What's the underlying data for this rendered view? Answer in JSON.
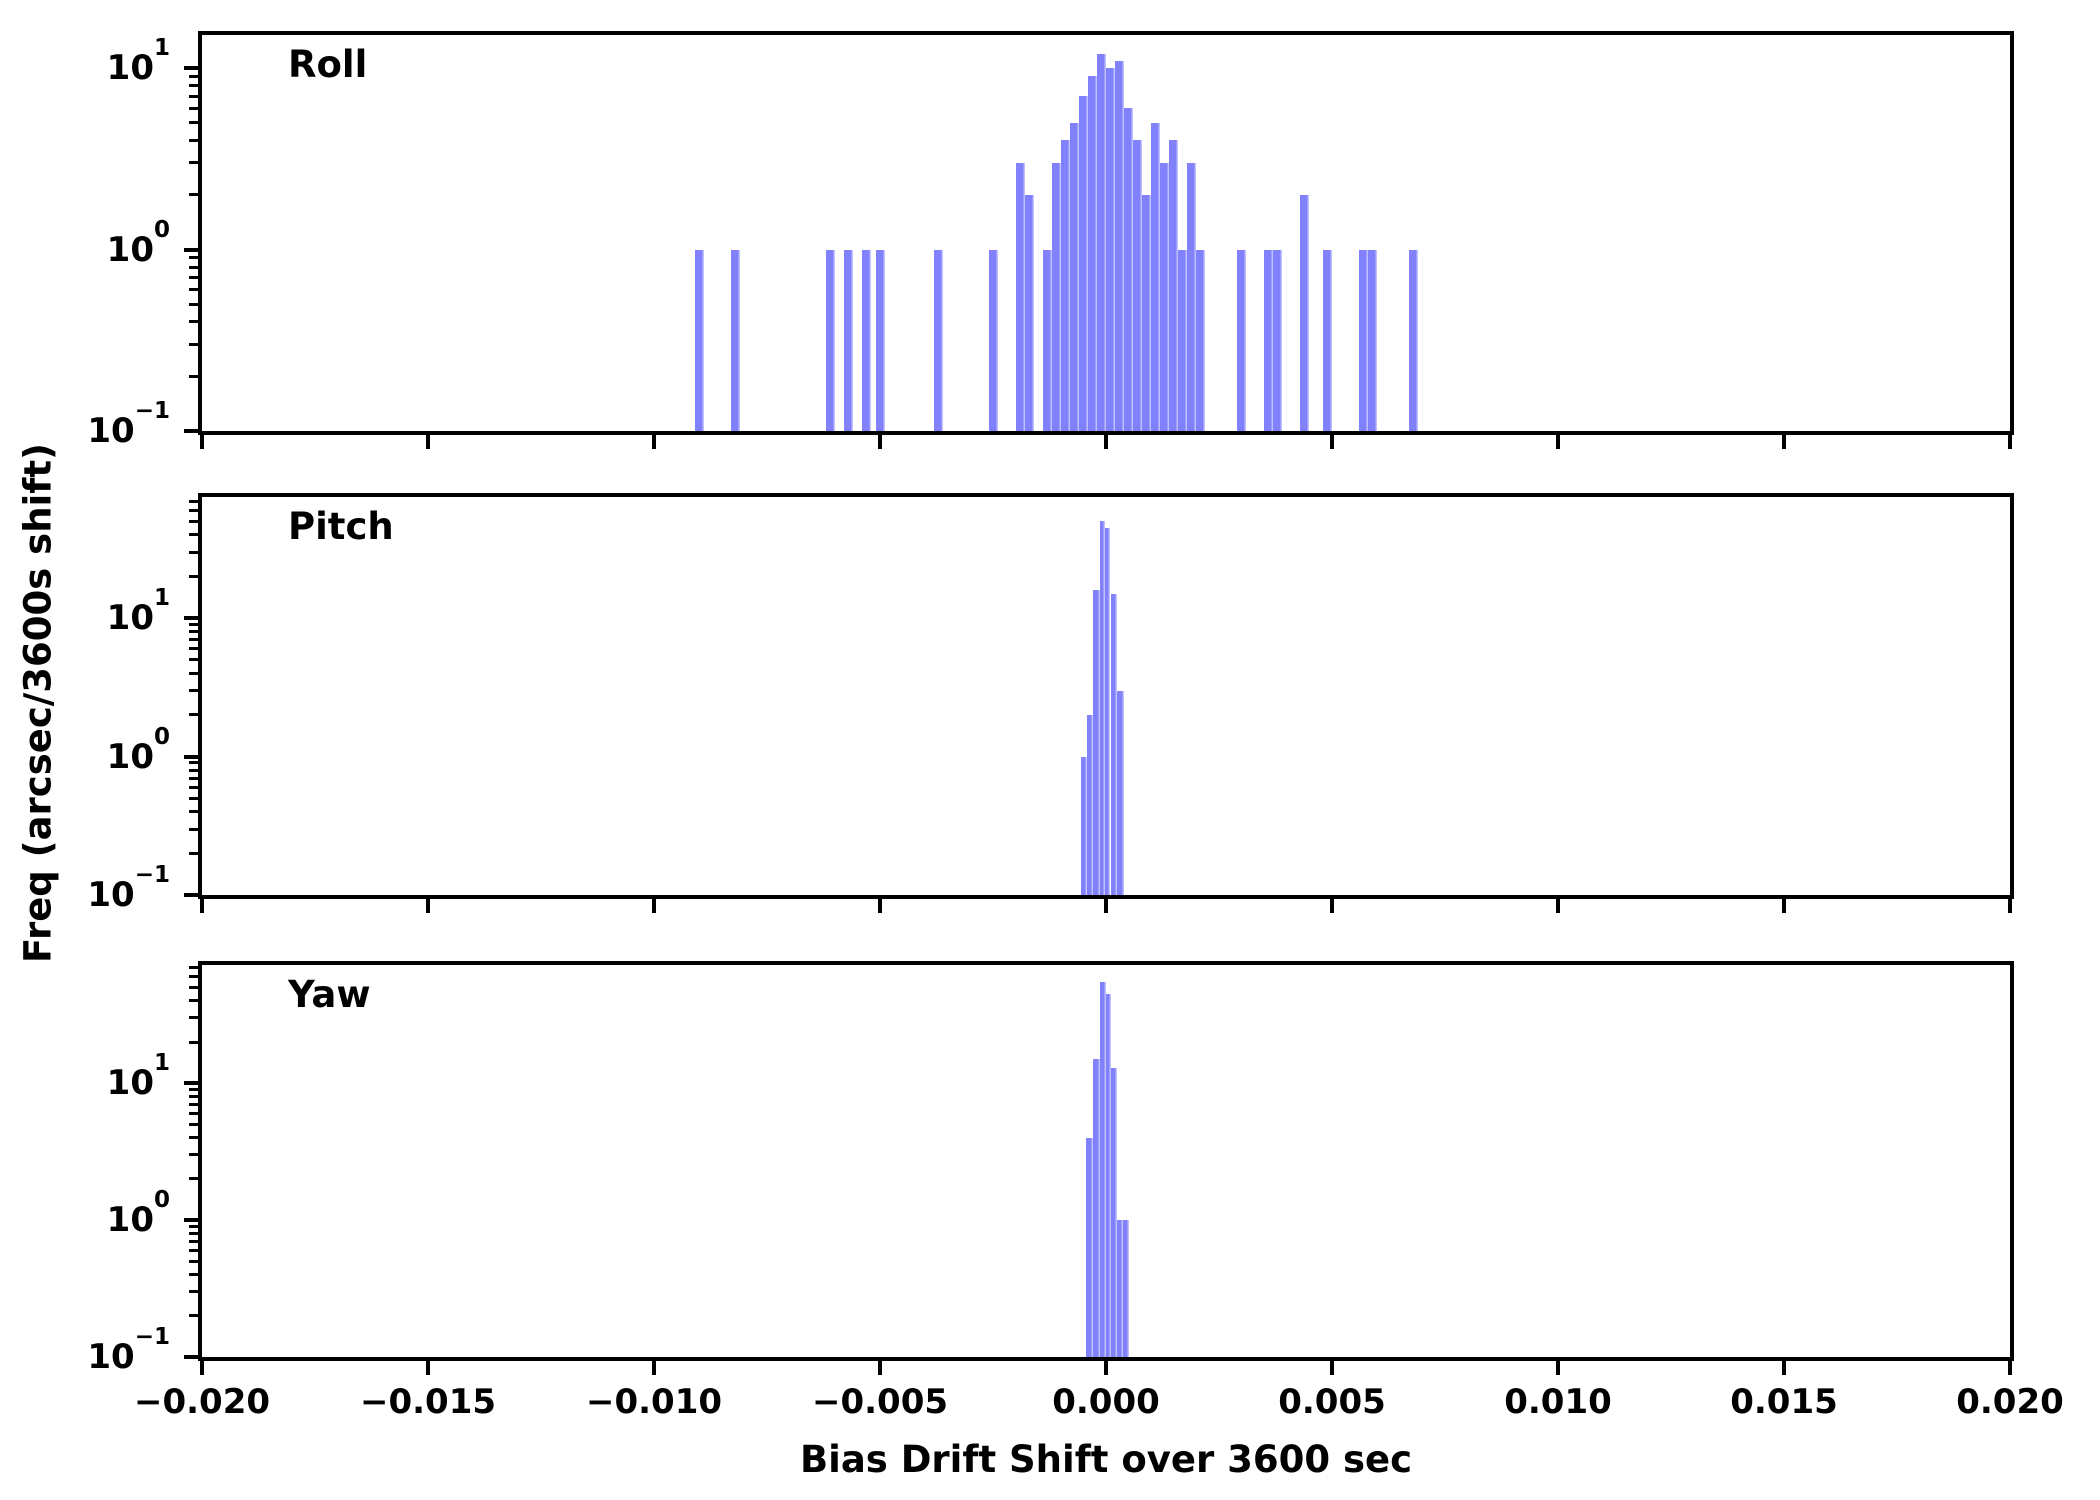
{
  "figure": {
    "xlabel": "Bias Drift Shift over 3600 sec",
    "ylabel": "Freq (arcsec/3600s shift)",
    "bar_color": "#8181fb",
    "axis_color": "#000000",
    "background_color": "#ffffff"
  },
  "x_axis": {
    "min": -0.02,
    "max": 0.02,
    "tick_values": [
      -0.02,
      -0.015,
      -0.01,
      -0.005,
      0.0,
      0.005,
      0.01,
      0.015,
      0.02
    ],
    "tick_labels": [
      "−0.020",
      "−0.015",
      "−0.010",
      "−0.005",
      "0.000",
      "0.005",
      "0.010",
      "0.015",
      "0.020"
    ]
  },
  "chart_data": [
    {
      "type": "bar",
      "title": "Roll",
      "ylabel": "Freq (arcsec/3600s shift)",
      "yscale": "log",
      "ylim": [
        0.1,
        15.2
      ],
      "y_ticks": [
        {
          "value": 10,
          "base": "10",
          "exp": "1"
        },
        {
          "value": 1,
          "base": "10",
          "exp": "0"
        },
        {
          "value": 0.1,
          "base": "10",
          "exp": "−1"
        }
      ],
      "bin_width": 0.0002,
      "bars": [
        [
          -0.0091,
          0.0002,
          1
        ],
        [
          -0.0083,
          0.0002,
          1
        ],
        [
          -0.0062,
          0.0002,
          1
        ],
        [
          -0.0058,
          0.0002,
          1
        ],
        [
          -0.0054,
          0.0002,
          1
        ],
        [
          -0.0051,
          0.0002,
          1
        ],
        [
          -0.0038,
          0.0002,
          1
        ],
        [
          -0.0026,
          0.0002,
          1
        ],
        [
          -0.002,
          0.0002,
          3
        ],
        [
          -0.0018,
          0.0002,
          2
        ],
        [
          -0.0014,
          0.0002,
          1
        ],
        [
          -0.0012,
          0.0002,
          3
        ],
        [
          -0.001,
          0.0002,
          4
        ],
        [
          -0.0008,
          0.0002,
          5
        ],
        [
          -0.0006,
          0.0002,
          7
        ],
        [
          -0.0004,
          0.0002,
          9
        ],
        [
          -0.0002,
          0.0002,
          12
        ],
        [
          0.0,
          0.0002,
          10
        ],
        [
          0.0002,
          0.0002,
          11
        ],
        [
          0.0004,
          0.0002,
          6
        ],
        [
          0.0006,
          0.0002,
          4
        ],
        [
          0.0008,
          0.0002,
          2
        ],
        [
          0.001,
          0.0002,
          5
        ],
        [
          0.0012,
          0.0002,
          3
        ],
        [
          0.0014,
          0.0002,
          4
        ],
        [
          0.0016,
          0.0002,
          1
        ],
        [
          0.0018,
          0.0002,
          3
        ],
        [
          0.002,
          0.0002,
          1
        ],
        [
          0.0029,
          0.0002,
          1
        ],
        [
          0.0035,
          0.0002,
          1
        ],
        [
          0.0037,
          0.0002,
          1
        ],
        [
          0.0043,
          0.0002,
          2
        ],
        [
          0.0048,
          0.0002,
          1
        ],
        [
          0.0056,
          0.0002,
          1
        ],
        [
          0.0058,
          0.0002,
          1
        ],
        [
          0.0067,
          0.0002,
          1
        ]
      ]
    },
    {
      "type": "bar",
      "title": "Pitch",
      "ylabel": "Freq (arcsec/3600s shift)",
      "yscale": "log",
      "ylim": [
        0.1,
        75
      ],
      "y_ticks": [
        {
          "value": 10,
          "base": "10",
          "exp": "1"
        },
        {
          "value": 1,
          "base": "10",
          "exp": "0"
        },
        {
          "value": 0.1,
          "base": "10",
          "exp": "−1"
        }
      ],
      "bin_width": 0.00014,
      "bars": [
        [
          -0.00055,
          0.00013,
          1
        ],
        [
          -0.00042,
          0.00013,
          2
        ],
        [
          -0.00029,
          0.00015,
          16
        ],
        [
          -0.00014,
          0.00011,
          50
        ],
        [
          -3e-05,
          0.00013,
          45
        ],
        [
          0.0001,
          0.00014,
          15
        ],
        [
          0.00024,
          0.00015,
          3
        ]
      ]
    },
    {
      "type": "bar",
      "title": "Yaw",
      "ylabel": "Freq (arcsec/3600s shift)",
      "yscale": "log",
      "ylim": [
        0.1,
        73
      ],
      "y_ticks": [
        {
          "value": 10,
          "base": "10",
          "exp": "1"
        },
        {
          "value": 1,
          "base": "10",
          "exp": "0"
        },
        {
          "value": 0.1,
          "base": "10",
          "exp": "−1"
        }
      ],
      "bin_width": 0.00014,
      "bars": [
        [
          -0.00044,
          0.00015,
          4
        ],
        [
          -0.00029,
          0.00015,
          15
        ],
        [
          -0.00014,
          0.00013,
          55
        ],
        [
          -1e-05,
          0.00012,
          45
        ],
        [
          0.00011,
          0.00013,
          13
        ],
        [
          0.00024,
          0.00013,
          1
        ],
        [
          0.00037,
          0.00013,
          1
        ]
      ]
    }
  ]
}
